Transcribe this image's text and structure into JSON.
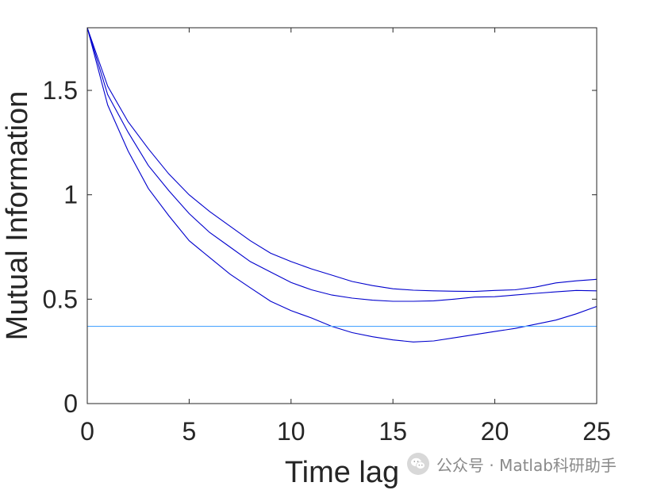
{
  "chart_data": {
    "type": "line",
    "title": "",
    "xlabel": "Time lag",
    "ylabel": "Mutual Information",
    "xlim": [
      0,
      25
    ],
    "ylim": [
      0,
      1.8
    ],
    "xticks": [
      0,
      5,
      10,
      15,
      20,
      25
    ],
    "yticks": [
      0,
      0.5,
      1,
      1.5
    ],
    "xtick_labels": [
      "0",
      "5",
      "10",
      "15",
      "20",
      "25"
    ],
    "ytick_labels": [
      "0",
      "0.5",
      "1",
      "1.5"
    ],
    "grid": false,
    "series": [
      {
        "color": "#0000cd",
        "x": [
          0,
          1,
          2,
          3,
          4,
          5,
          6,
          7,
          8,
          9,
          10,
          11,
          12,
          13,
          14,
          15,
          16,
          17,
          18,
          19,
          20,
          21,
          22,
          23,
          24,
          25
        ],
        "y": [
          1.8,
          1.52,
          1.35,
          1.22,
          1.1,
          1.0,
          0.92,
          0.85,
          0.78,
          0.72,
          0.68,
          0.645,
          0.615,
          0.585,
          0.565,
          0.55,
          0.543,
          0.54,
          0.538,
          0.537,
          0.542,
          0.545,
          0.558,
          0.578,
          0.588,
          0.595
        ]
      },
      {
        "color": "#0000cd",
        "x": [
          0,
          1,
          2,
          3,
          4,
          5,
          6,
          7,
          8,
          9,
          10,
          11,
          12,
          13,
          14,
          15,
          16,
          17,
          18,
          19,
          20,
          21,
          22,
          23,
          24,
          25
        ],
        "y": [
          1.8,
          1.48,
          1.3,
          1.14,
          1.02,
          0.91,
          0.82,
          0.75,
          0.68,
          0.63,
          0.58,
          0.545,
          0.52,
          0.505,
          0.495,
          0.49,
          0.49,
          0.492,
          0.5,
          0.51,
          0.512,
          0.52,
          0.528,
          0.535,
          0.542,
          0.54
        ]
      },
      {
        "color": "#0000cd",
        "x": [
          0,
          1,
          2,
          3,
          4,
          5,
          6,
          7,
          8,
          9,
          10,
          11,
          12,
          13,
          14,
          15,
          16,
          17,
          18,
          19,
          20,
          21,
          22,
          23,
          24,
          25
        ],
        "y": [
          1.8,
          1.43,
          1.21,
          1.03,
          0.9,
          0.78,
          0.7,
          0.62,
          0.555,
          0.49,
          0.445,
          0.41,
          0.37,
          0.34,
          0.32,
          0.305,
          0.295,
          0.3,
          0.315,
          0.33,
          0.345,
          0.36,
          0.38,
          0.4,
          0.43,
          0.465
        ]
      },
      {
        "color": "#4da6ff",
        "x": [
          0,
          25
        ],
        "y": [
          0.37,
          0.37
        ]
      }
    ]
  },
  "watermark": {
    "text": "公众号 · Matlab科研助手",
    "icon": "wechat-icon"
  }
}
